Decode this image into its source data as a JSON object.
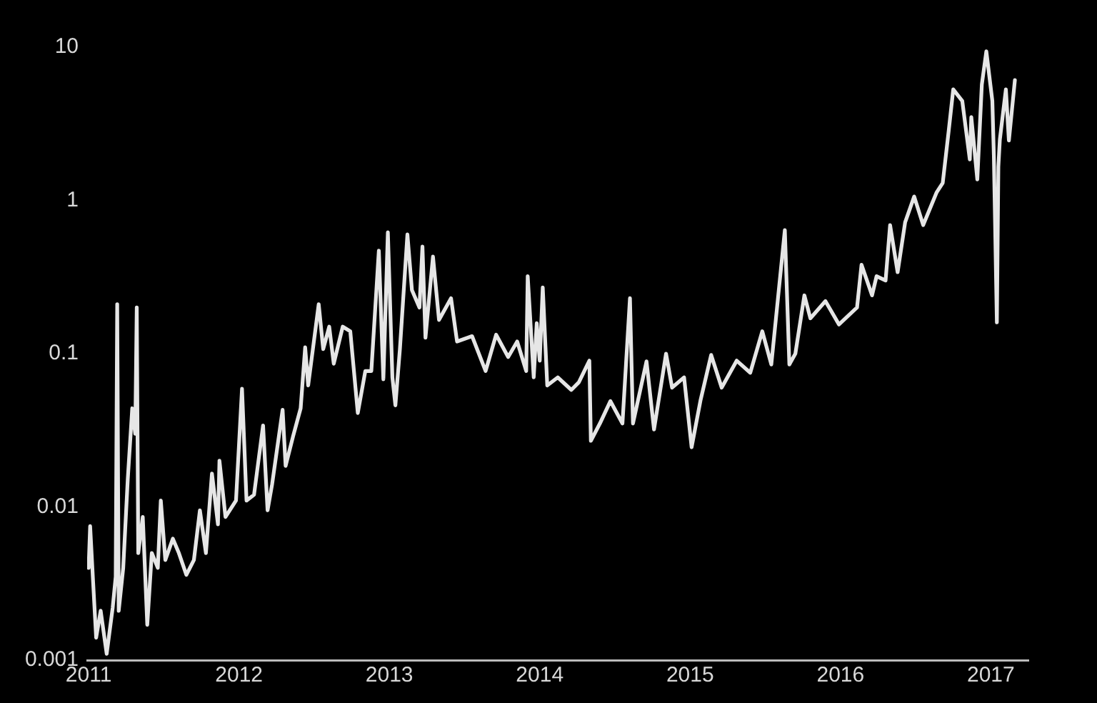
{
  "chart_data": {
    "type": "line",
    "log": "y",
    "grid": false,
    "xlim": [
      2010.99,
      2017.25
    ],
    "ylim": [
      0.001,
      10
    ],
    "xticks": [
      2011,
      2012,
      2013,
      2014,
      2015,
      2016,
      2017
    ],
    "yticks": [
      0.001,
      0.01,
      0.1,
      1,
      10
    ],
    "x": [
      2011.0,
      2011.01,
      2011.03,
      2011.05,
      2011.08,
      2011.12,
      2011.16,
      2011.18,
      2011.19,
      2011.2,
      2011.23,
      2011.26,
      2011.29,
      2011.31,
      2011.32,
      2011.33,
      2011.36,
      2011.39,
      2011.42,
      2011.46,
      2011.48,
      2011.51,
      2011.56,
      2011.6,
      2011.65,
      2011.7,
      2011.74,
      2011.78,
      2011.82,
      2011.86,
      2011.87,
      2011.91,
      2011.98,
      2012.02,
      2012.05,
      2012.1,
      2012.16,
      2012.19,
      2012.22,
      2012.29,
      2012.31,
      2012.36,
      2012.41,
      2012.44,
      2012.46,
      2012.53,
      2012.56,
      2012.6,
      2012.63,
      2012.69,
      2012.74,
      2012.79,
      2012.84,
      2012.88,
      2012.93,
      2012.96,
      2012.99,
      2013.02,
      2013.04,
      2013.07,
      2013.12,
      2013.15,
      2013.2,
      2013.22,
      2013.24,
      2013.29,
      2013.33,
      2013.41,
      2013.45,
      2013.55,
      2013.64,
      2013.71,
      2013.79,
      2013.85,
      2013.91,
      2013.92,
      2013.96,
      2013.98,
      2014.0,
      2014.02,
      2014.05,
      2014.12,
      2014.21,
      2014.26,
      2014.33,
      2014.34,
      2014.4,
      2014.47,
      2014.55,
      2014.6,
      2014.62,
      2014.71,
      2014.76,
      2014.84,
      2014.88,
      2014.96,
      2015.01,
      2015.07,
      2015.14,
      2015.21,
      2015.31,
      2015.4,
      2015.48,
      2015.54,
      2015.63,
      2015.66,
      2015.7,
      2015.76,
      2015.8,
      2015.9,
      2015.99,
      2016.11,
      2016.14,
      2016.21,
      2016.24,
      2016.3,
      2016.33,
      2016.38,
      2016.43,
      2016.49,
      2016.55,
      2016.64,
      2016.68,
      2016.72,
      2016.75,
      2016.81,
      2016.86,
      2016.87,
      2016.91,
      2016.94,
      2016.97,
      2017.01,
      2017.02,
      2017.04,
      2017.05,
      2017.06,
      2017.1,
      2017.12,
      2017.16
    ],
    "series": [
      {
        "color": "#e6e6e6",
        "values": [
          0.004,
          0.0075,
          0.0032,
          0.0014,
          0.0021,
          0.0011,
          0.0022,
          0.0035,
          0.21,
          0.0021,
          0.004,
          0.015,
          0.044,
          0.03,
          0.2,
          0.005,
          0.0086,
          0.0017,
          0.005,
          0.004,
          0.011,
          0.0045,
          0.0062,
          0.005,
          0.0036,
          0.0045,
          0.0095,
          0.005,
          0.0165,
          0.0077,
          0.02,
          0.0086,
          0.011,
          0.059,
          0.011,
          0.012,
          0.034,
          0.0095,
          0.014,
          0.043,
          0.0185,
          0.029,
          0.044,
          0.11,
          0.062,
          0.21,
          0.107,
          0.15,
          0.086,
          0.15,
          0.14,
          0.041,
          0.077,
          0.077,
          0.47,
          0.068,
          0.62,
          0.07,
          0.046,
          0.107,
          0.6,
          0.26,
          0.2,
          0.5,
          0.127,
          0.43,
          0.166,
          0.23,
          0.12,
          0.13,
          0.077,
          0.133,
          0.095,
          0.12,
          0.077,
          0.32,
          0.07,
          0.158,
          0.09,
          0.27,
          0.062,
          0.07,
          0.058,
          0.065,
          0.09,
          0.027,
          0.035,
          0.049,
          0.035,
          0.23,
          0.035,
          0.089,
          0.032,
          0.1,
          0.06,
          0.07,
          0.0245,
          0.05,
          0.098,
          0.06,
          0.09,
          0.075,
          0.14,
          0.085,
          0.64,
          0.085,
          0.1,
          0.24,
          0.17,
          0.22,
          0.155,
          0.2,
          0.38,
          0.24,
          0.32,
          0.3,
          0.69,
          0.34,
          0.72,
          1.06,
          0.69,
          1.13,
          1.3,
          2.86,
          5.3,
          4.45,
          1.85,
          3.5,
          1.37,
          5.7,
          9.4,
          4.45,
          1.97,
          0.16,
          1.66,
          2.5,
          5.3,
          2.46,
          6.1
        ]
      }
    ]
  }
}
